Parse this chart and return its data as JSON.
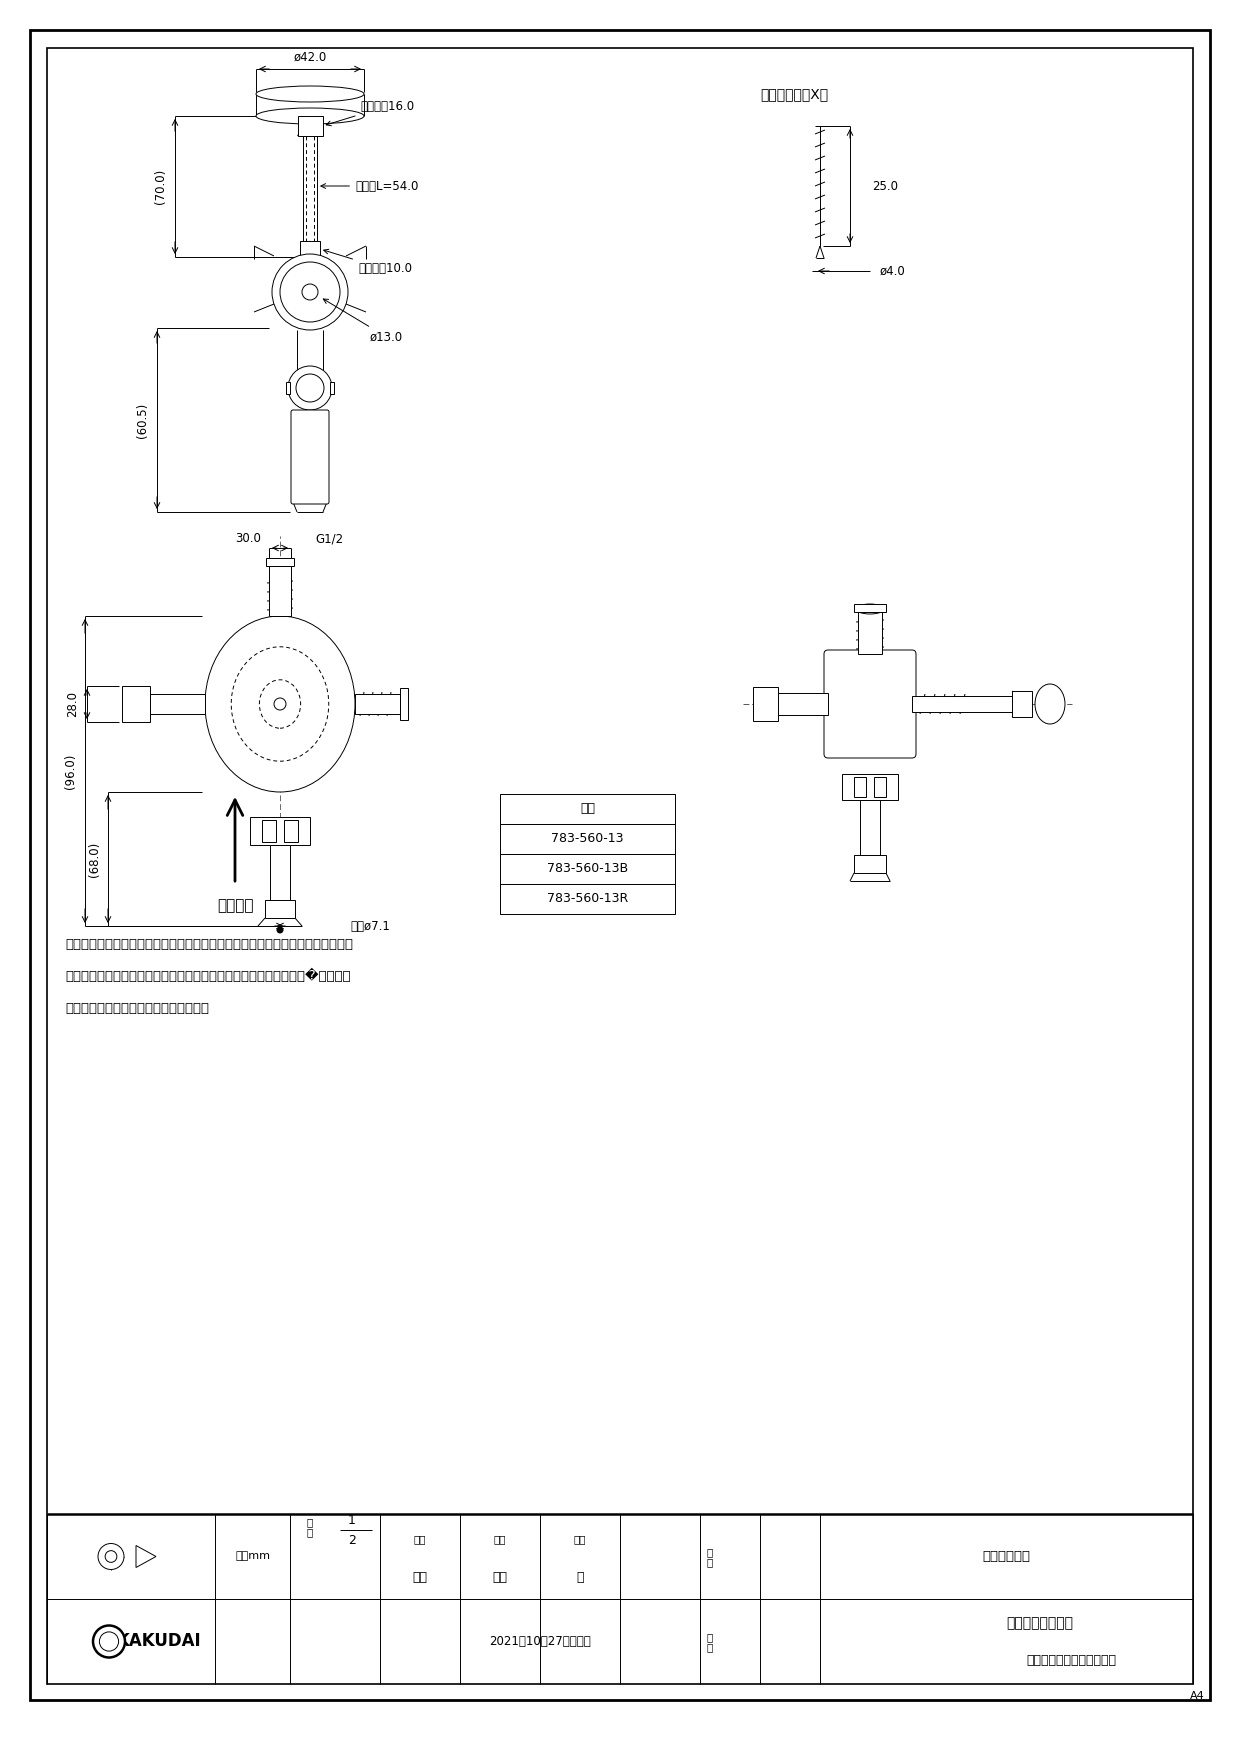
{
  "page_bg": "#ffffff",
  "line_color": "#000000",
  "title_text": "タッピンねじX２",
  "part_numbers": [
    "品番",
    "783-560-13",
    "783-560-13B",
    "783-560-13R"
  ],
  "notes": [
    "注１：樹脂管呼び１３：架橋ポリエチレン管・ポリブテン管兼用（Ｅ種は除く）",
    "注２：品番うしろのＢはハンドル青印字仕様、Ｒはハンドル赤印字�様です。",
    "注３：（　）内寸法は参考寸法である。"
  ],
  "water_dir": "通水方向",
  "tb_unit": "単位mm",
  "tb_roles": [
    "製図",
    "検図",
    "承認"
  ],
  "tb_makers": [
    "岩藤",
    "寒川",
    "祝"
  ],
  "tb_part_no_val": "図中表に記載",
  "tb_part_name1": "キッチンヘッダー",
  "tb_part_name2": "（クイックファスナー式）",
  "tb_date": "2021年10月27日　作成",
  "tb_size": "A4",
  "kakudai": "KAKUDAI"
}
